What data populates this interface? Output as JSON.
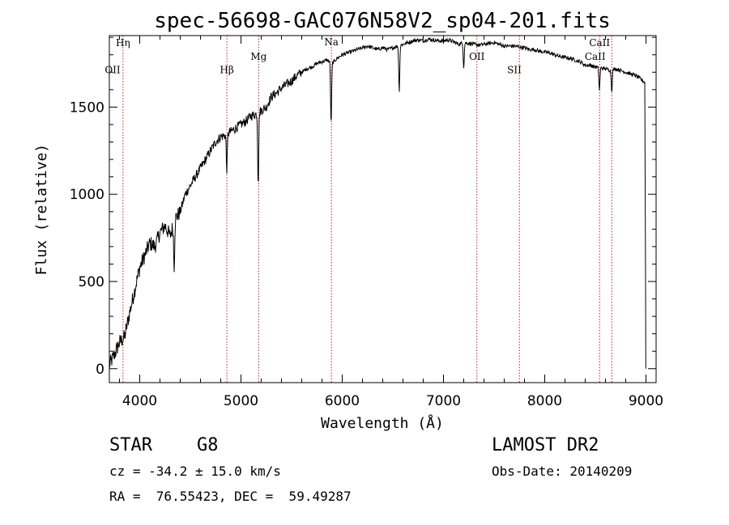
{
  "chart_data": {
    "type": "line",
    "title": "spec-56698-GAC076N58V2_sp04-201.fits",
    "xlabel": "Wavelength (Å)",
    "ylabel": "Flux (relative)",
    "xlim": [
      3700,
      9100
    ],
    "ylim": [
      -80,
      1910
    ],
    "xticks": [
      4000,
      5000,
      6000,
      7000,
      8000,
      9000
    ],
    "yticks": [
      0,
      500,
      1000,
      1500
    ],
    "grid": false,
    "series": [
      {
        "x": [
          3700,
          3750,
          3800,
          3850,
          3900,
          3950,
          4000,
          4050,
          4100,
          4150,
          4200,
          4250,
          4300,
          4350,
          4400,
          4450,
          4500,
          4550,
          4600,
          4650,
          4700,
          4750,
          4800,
          4850,
          4900,
          4950,
          5000,
          5050,
          5100,
          5150,
          5200,
          5250,
          5300,
          5350,
          5400,
          5450,
          5500,
          5550,
          5600,
          5650,
          5700,
          5750,
          5800,
          5850,
          5900,
          5950,
          6000,
          6050,
          6100,
          6150,
          6200,
          6250,
          6300,
          6350,
          6400,
          6450,
          6500,
          6550,
          6600,
          6650,
          6700,
          6750,
          6800,
          6850,
          6900,
          6950,
          7000,
          7050,
          7100,
          7150,
          7200,
          7250,
          7300,
          7350,
          7400,
          7450,
          7500,
          7550,
          7600,
          7650,
          7700,
          7750,
          7800,
          7850,
          7900,
          7950,
          8000,
          8050,
          8100,
          8150,
          8200,
          8250,
          8300,
          8350,
          8400,
          8450,
          8500,
          8550,
          8600,
          8650,
          8700,
          8750,
          8800,
          8850,
          8900,
          8950,
          8990,
          8995,
          9000
        ],
        "y": [
          20,
          80,
          150,
          180,
          320,
          450,
          580,
          650,
          720,
          700,
          780,
          820,
          760,
          860,
          900,
          1000,
          1050,
          1100,
          1150,
          1200,
          1250,
          1300,
          1330,
          1340,
          1360,
          1380,
          1400,
          1420,
          1450,
          1460,
          1480,
          1500,
          1560,
          1580,
          1610,
          1630,
          1650,
          1680,
          1700,
          1720,
          1730,
          1750,
          1760,
          1770,
          1750,
          1780,
          1800,
          1810,
          1820,
          1830,
          1840,
          1850,
          1840,
          1830,
          1840,
          1830,
          1840,
          1850,
          1860,
          1870,
          1880,
          1885,
          1880,
          1890,
          1885,
          1880,
          1880,
          1885,
          1875,
          1860,
          1870,
          1865,
          1860,
          1855,
          1860,
          1865,
          1870,
          1860,
          1850,
          1850,
          1850,
          1845,
          1840,
          1830,
          1830,
          1820,
          1815,
          1810,
          1800,
          1790,
          1785,
          1780,
          1770,
          1760,
          1740,
          1740,
          1730,
          1725,
          1720,
          1710,
          1720,
          1710,
          1700,
          1690,
          1680,
          1660,
          1640,
          500,
          0
        ]
      }
    ],
    "absorption_features": [
      {
        "x": 4340,
        "depth": 250
      },
      {
        "x": 4860,
        "depth": 200
      },
      {
        "x": 5170,
        "depth": 400
      },
      {
        "x": 5890,
        "depth": 350
      },
      {
        "x": 6563,
        "depth": 260
      },
      {
        "x": 7200,
        "depth": 140
      },
      {
        "x": 8540,
        "depth": 130
      },
      {
        "x": 8662,
        "depth": 120
      }
    ],
    "spectral_lines": [
      {
        "label": "Hη",
        "x": 3835,
        "label_y": 1850
      },
      {
        "label": "OII",
        "x": 3727,
        "label_y": 1695
      },
      {
        "label": "Hβ",
        "x": 4861,
        "label_y": 1695
      },
      {
        "label": "Mg",
        "x": 5175,
        "label_y": 1770
      },
      {
        "label": "Na",
        "x": 5893,
        "label_y": 1855
      },
      {
        "label": "OII",
        "x": 7330,
        "label_y": 1770
      },
      {
        "label": "SII",
        "x": 7700,
        "label_y": 1695
      },
      {
        "label": "CaII",
        "x": 8498,
        "label_y": 1770
      },
      {
        "label": "CaII",
        "x": 8542,
        "label_y": 1850
      }
    ],
    "line_x_markers": [
      3835,
      4861,
      5175,
      5893,
      7330,
      7750,
      8542,
      8662
    ]
  },
  "info": {
    "class_label": "STAR",
    "subclass": "G8",
    "survey": "LAMOST DR2",
    "cz": "cz = -34.2 ± 15.0 km/s",
    "obs_date": "Obs-Date: 20140209",
    "coords": "RA =  76.55423, DEC =  59.49287"
  }
}
